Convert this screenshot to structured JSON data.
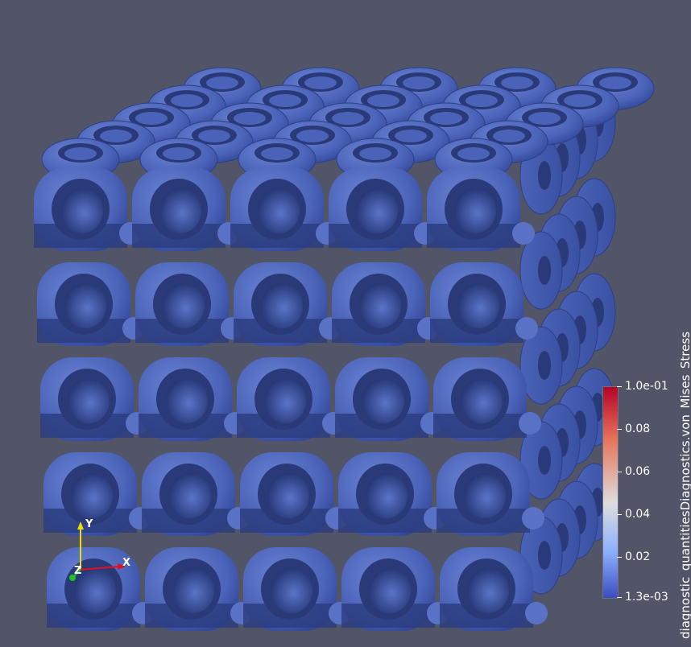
{
  "colorbar": {
    "title": "diagnostic_quantitiesDiagnostics.von_Mises_Stress",
    "ticks": [
      {
        "label": "1.0e-01",
        "value": 0.1
      },
      {
        "label": "0.08",
        "value": 0.08
      },
      {
        "label": "0.06",
        "value": 0.06
      },
      {
        "label": "0.04",
        "value": 0.04
      },
      {
        "label": "0.02",
        "value": 0.02
      },
      {
        "label": "1.3e-03",
        "value": 0.0013
      }
    ],
    "range": [
      0.0013,
      0.1
    ],
    "colors": {
      "high": "#b40426",
      "mid": "#dddddd",
      "low": "#3b4cc0"
    }
  },
  "axes": {
    "x": "X",
    "y": "Y",
    "z": "Z"
  },
  "colors": {
    "background": "#525468",
    "surface": "#4a63b8",
    "surface_dark": "#2a3a78",
    "surface_light": "#6880d0"
  },
  "lattice": {
    "columns": 5,
    "rows": 5,
    "depth_layers": 5
  }
}
